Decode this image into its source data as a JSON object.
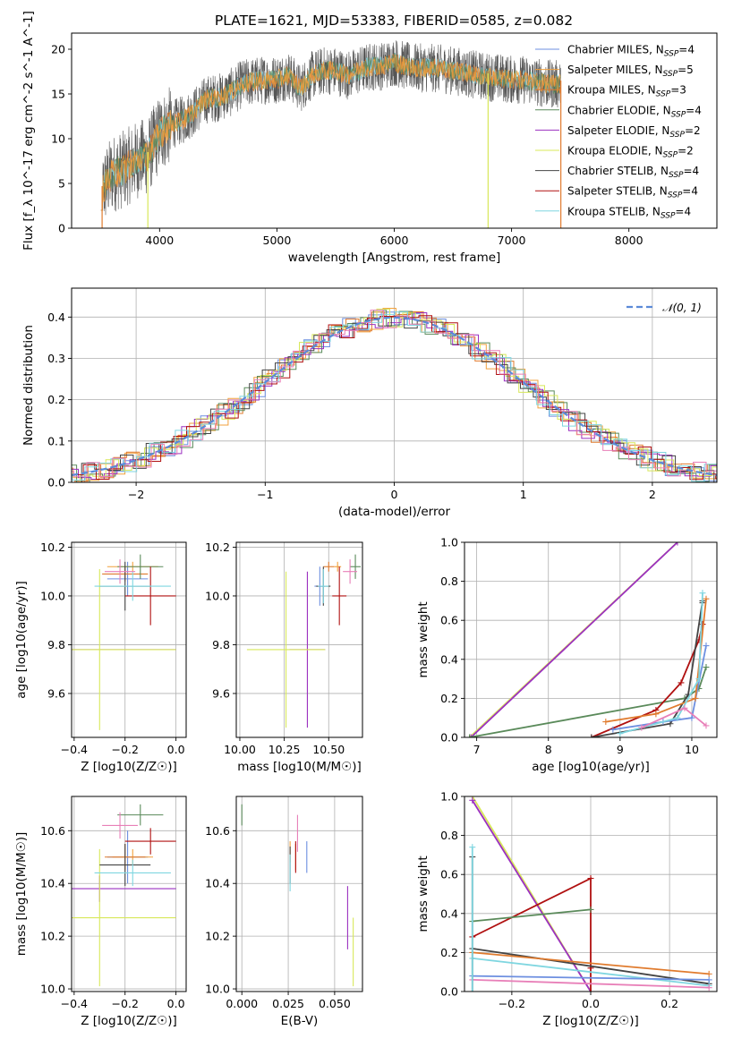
{
  "figure_title": "PLATE=1621, MJD=53383, FIBERID=0585, z=0.082",
  "colors": {
    "Chabrier MILES": "#6d8fe0",
    "Salpeter MILES": "#f2a03c",
    "Kroupa MILES": "#e07b2e",
    "Chabrier ELODIE": "#5a8a5a",
    "Salpeter ELODIE": "#9b30c0",
    "Kroupa ELODIE": "#d8e85a",
    "Chabrier STELIB": "#444444",
    "Salpeter STELIB": "#b01010",
    "Kroupa STELIB": "#7fd6e0",
    "Pink": "#e87fb8",
    "normal": "#5b8ad8"
  },
  "chart_data": [
    {
      "type": "line",
      "title": "PLATE=1621, MJD=53383, FIBERID=0585, z=0.082",
      "xlabel": "wavelength [Angstrom, rest frame]",
      "ylabel": "Flux [f_λ 10^-17 erg cm^-2 s^-1 A^-1]",
      "xlim": [
        3250,
        8750
      ],
      "ylim": [
        0,
        21.8
      ],
      "xticks": [
        "4000",
        "5000",
        "6000",
        "7000",
        "8000"
      ],
      "yticks": [
        "0",
        "5",
        "10",
        "15",
        "20"
      ],
      "legend_placement": "upper right",
      "series": [
        {
          "name": "Chabrier MILES",
          "sub": "SSP",
          "nssp": "=4"
        },
        {
          "name": "Salpeter MILES",
          "sub": "SSP",
          "nssp": "=5"
        },
        {
          "name": "Kroupa MILES",
          "sub": "SSP",
          "nssp": "=3"
        },
        {
          "name": "Chabrier ELODIE",
          "sub": "SSP",
          "nssp": "=4"
        },
        {
          "name": "Salpeter ELODIE",
          "sub": "SSP",
          "nssp": "=2"
        },
        {
          "name": "Kroupa ELODIE",
          "sub": "SSP",
          "nssp": "=2"
        },
        {
          "name": "Chabrier STELIB",
          "sub": "SSP",
          "nssp": "=4"
        },
        {
          "name": "Salpeter STELIB",
          "sub": "SSP",
          "nssp": "=4"
        },
        {
          "name": "Kroupa STELIB",
          "sub": "SSP",
          "nssp": "=4"
        }
      ],
      "envelope": {
        "x": [
          3500,
          3600,
          3700,
          3800,
          3900,
          4000,
          4100,
          4200,
          4300,
          4400,
          4500,
          4600,
          4700,
          4800,
          4900,
          5000,
          5100,
          5200,
          5300,
          5400,
          5500,
          5600,
          5700,
          5800,
          5900,
          6000,
          6100,
          6200,
          6300,
          6400,
          6500,
          6600,
          6700,
          6800,
          6900,
          7000,
          7100,
          7200,
          7300,
          7400
        ],
        "y": [
          5.5,
          7.5,
          8,
          9,
          9.5,
          12,
          13,
          13.5,
          14.5,
          15.8,
          16,
          16.5,
          17.5,
          17.8,
          18,
          18,
          18.5,
          17,
          18.5,
          19,
          19,
          18.5,
          19,
          19.5,
          19.5,
          20,
          19.5,
          19.3,
          19.3,
          19.2,
          19,
          18.8,
          18.5,
          18.3,
          18.2,
          18,
          18,
          17.8,
          17.5,
          17.5
        ]
      }
    },
    {
      "type": "line",
      "xlabel": "(data-model)/error",
      "ylabel": "Normed distribution",
      "xlim": [
        -2.5,
        2.5
      ],
      "ylim": [
        0,
        0.47
      ],
      "xticks": [
        "−2",
        "−1",
        "0",
        "1",
        "2"
      ],
      "yticks": [
        "0.0",
        "0.1",
        "0.2",
        "0.3",
        "0.4"
      ],
      "grid": true,
      "legend": "𝒩(0, 1)",
      "legend_placement": "upper right",
      "histogram_bin_width": 0.1,
      "normal_reference": {
        "mean": 0,
        "sd": 1
      }
    },
    {
      "type": "scatter",
      "xlabel": "Z [log10(Z/Z☉)]",
      "ylabel": "age  [log10(age/yr)]",
      "xlim": [
        -0.41,
        0.04
      ],
      "ylim": [
        9.42,
        10.22
      ],
      "xticks": [
        "−0.4",
        "−0.2",
        "0.0"
      ],
      "yticks": [
        "9.6",
        "9.8",
        "10.0",
        "10.2"
      ],
      "grid": true,
      "points": [
        {
          "series": "Chabrier MILES",
          "x": -0.19,
          "y": 10.07,
          "xerr": 0.08,
          "yerr": 0.07
        },
        {
          "series": "Salpeter MILES",
          "x": -0.17,
          "y": 10.12,
          "xerr": 0.1,
          "yerr": 0.02
        },
        {
          "series": "Kroupa MILES",
          "x": -0.2,
          "y": 10.09,
          "xerr": 0.09,
          "yerr": 0.03
        },
        {
          "series": "Chabrier ELODIE",
          "x": -0.14,
          "y": 10.12,
          "xerr": 0.09,
          "yerr": 0.05
        },
        {
          "series": "Salpeter ELODIE",
          "x": -0.3,
          "y": 9.78,
          "xerr": 0.3,
          "yerr": 0.0
        },
        {
          "series": "Kroupa ELODIE",
          "x": -0.3,
          "y": 9.78,
          "xerr": 0.3,
          "yerr": 0.33
        },
        {
          "series": "Chabrier STELIB",
          "x": -0.2,
          "y": 10.04,
          "xerr": 0.1,
          "yerr": 0.1
        },
        {
          "series": "Salpeter STELIB",
          "x": -0.1,
          "y": 10.0,
          "xerr": 0.1,
          "yerr": 0.12
        },
        {
          "series": "Kroupa STELIB",
          "x": -0.17,
          "y": 10.04,
          "xerr": 0.15,
          "yerr": 0.06
        },
        {
          "series": "Pink",
          "x": -0.22,
          "y": 10.1,
          "xerr": 0.06,
          "yerr": 0.05
        }
      ]
    },
    {
      "type": "scatter",
      "xlabel": "mass [log10(M/M☉)]",
      "ylabel": "",
      "xlim": [
        9.98,
        10.69
      ],
      "ylim": [
        9.42,
        10.22
      ],
      "xticks": [
        "10.00",
        "10.25",
        "10.50"
      ],
      "yticks": [
        "9.6",
        "9.8",
        "10.0",
        "10.2"
      ],
      "grid": true,
      "points": [
        {
          "series": "Chabrier MILES",
          "x": 10.45,
          "y": 10.04,
          "xerr": 0.03,
          "yerr": 0.08
        },
        {
          "series": "Salpeter MILES",
          "x": 10.55,
          "y": 10.12,
          "xerr": 0.02,
          "yerr": 0.02
        },
        {
          "series": "Kroupa MILES",
          "x": 10.5,
          "y": 10.12,
          "xerr": 0.03,
          "yerr": 0.02
        },
        {
          "series": "Chabrier ELODIE",
          "x": 10.65,
          "y": 10.12,
          "xerr": 0.03,
          "yerr": 0.05
        },
        {
          "series": "Salpeter ELODIE",
          "x": 10.38,
          "y": 9.78,
          "xerr": 0.1,
          "yerr": 0.32
        },
        {
          "series": "Kroupa ELODIE",
          "x": 10.26,
          "y": 9.78,
          "xerr": 0.22,
          "yerr": 0.32
        },
        {
          "series": "Chabrier STELIB",
          "x": 10.47,
          "y": 10.04,
          "xerr": 0.04,
          "yerr": 0.08
        },
        {
          "series": "Salpeter STELIB",
          "x": 10.56,
          "y": 10.0,
          "xerr": 0.04,
          "yerr": 0.12
        },
        {
          "series": "Kroupa STELIB",
          "x": 10.47,
          "y": 10.04,
          "xerr": 0.03,
          "yerr": 0.07
        },
        {
          "series": "Pink",
          "x": 10.62,
          "y": 10.1,
          "xerr": 0.04,
          "yerr": 0.05
        }
      ]
    },
    {
      "type": "line",
      "xlabel": "age  [log10(age/yr)]",
      "ylabel": "mass weight",
      "xlim": [
        6.83,
        10.35
      ],
      "ylim": [
        0,
        1.0
      ],
      "xticks": [
        "7",
        "8",
        "9",
        "10"
      ],
      "yticks": [
        "0.0",
        "0.2",
        "0.4",
        "0.6",
        "0.8",
        "1.0"
      ],
      "grid": true,
      "series": [
        {
          "series": "Kroupa ELODIE",
          "x": [
            6.9,
            9.8
          ],
          "y": [
            0.0,
            1.0
          ]
        },
        {
          "series": "Salpeter ELODIE",
          "x": [
            6.92,
            9.8
          ],
          "y": [
            0.0,
            1.0
          ]
        },
        {
          "series": "Chabrier ELODIE",
          "x": [
            6.9,
            9.9,
            10.1,
            10.2
          ],
          "y": [
            0.0,
            0.2,
            0.25,
            0.36
          ]
        },
        {
          "series": "Salpeter STELIB",
          "x": [
            8.6,
            9.5,
            9.85,
            10.1,
            10.15
          ],
          "y": [
            0.0,
            0.14,
            0.28,
            0.5,
            0.58
          ]
        },
        {
          "series": "Chabrier STELIB",
          "x": [
            8.6,
            9.7,
            9.95,
            10.15,
            10.15
          ],
          "y": [
            0.0,
            0.07,
            0.22,
            0.7,
            0.69
          ]
        },
        {
          "series": "Chabrier MILES",
          "x": [
            8.9,
            9.6,
            10.0,
            10.2
          ],
          "y": [
            0.04,
            0.08,
            0.1,
            0.47
          ]
        },
        {
          "series": "Kroupa MILES",
          "x": [
            8.8,
            9.5,
            10.05,
            10.2
          ],
          "y": [
            0.08,
            0.12,
            0.2,
            0.71
          ]
        },
        {
          "series": "Kroupa STELIB",
          "x": [
            9.0,
            9.8,
            10.1,
            10.15
          ],
          "y": [
            0.02,
            0.1,
            0.3,
            0.74
          ]
        },
        {
          "series": "Pink",
          "x": [
            9.3,
            9.9,
            10.2
          ],
          "y": [
            0.05,
            0.15,
            0.06
          ]
        }
      ]
    },
    {
      "type": "scatter",
      "xlabel": "Z [log10(Z/Z☉)]",
      "ylabel": "mass [log10(M/M☉)]",
      "xlim": [
        -0.41,
        0.04
      ],
      "ylim": [
        9.99,
        10.73
      ],
      "xticks": [
        "−0.4",
        "−0.2",
        "0.0"
      ],
      "yticks": [
        "10.0",
        "10.2",
        "10.4",
        "10.6"
      ],
      "grid": true,
      "points": [
        {
          "series": "Chabrier MILES",
          "x": -0.19,
          "y": 10.5,
          "xerr": 0.08,
          "yerr": 0.1
        },
        {
          "series": "Salpeter MILES",
          "x": -0.17,
          "y": 10.5,
          "xerr": 0.08,
          "yerr": 0.03
        },
        {
          "series": "Kroupa MILES",
          "x": -0.2,
          "y": 10.5,
          "xerr": 0.08,
          "yerr": 0.05
        },
        {
          "series": "Chabrier ELODIE",
          "x": -0.14,
          "y": 10.66,
          "xerr": 0.09,
          "yerr": 0.04
        },
        {
          "series": "Salpeter ELODIE",
          "x": -0.3,
          "y": 10.38,
          "xerr": 0.3,
          "yerr": 0.05
        },
        {
          "series": "Kroupa ELODIE",
          "x": -0.3,
          "y": 10.27,
          "xerr": 0.3,
          "yerr": 0.26
        },
        {
          "series": "Chabrier STELIB",
          "x": -0.2,
          "y": 10.47,
          "xerr": 0.1,
          "yerr": 0.08
        },
        {
          "series": "Salpeter STELIB",
          "x": -0.1,
          "y": 10.56,
          "xerr": 0.1,
          "yerr": 0.05
        },
        {
          "series": "Kroupa STELIB",
          "x": -0.17,
          "y": 10.44,
          "xerr": 0.15,
          "yerr": 0.05
        },
        {
          "series": "Pink",
          "x": -0.22,
          "y": 10.62,
          "xerr": 0.07,
          "yerr": 0.05
        }
      ]
    },
    {
      "type": "scatter",
      "xlabel": "E(B-V)",
      "ylabel": "",
      "xlim": [
        -0.003,
        0.065
      ],
      "ylim": [
        9.99,
        10.73
      ],
      "xticks": [
        "0.000",
        "0.025",
        "0.050"
      ],
      "yticks": [
        "10.0",
        "10.2",
        "10.4",
        "10.6"
      ],
      "grid": true,
      "points": [
        {
          "series": "Chabrier MILES",
          "x": 0.035,
          "y": 10.5,
          "xerr": 0,
          "yerr": 0.06
        },
        {
          "series": "Salpeter MILES",
          "x": 0.026,
          "y": 10.52,
          "xerr": 0,
          "yerr": 0.04
        },
        {
          "series": "Kroupa MILES",
          "x": 0.029,
          "y": 10.5,
          "xerr": 0,
          "yerr": 0.05
        },
        {
          "series": "Chabrier ELODIE",
          "x": 0.0,
          "y": 10.66,
          "xerr": 0,
          "yerr": 0.04
        },
        {
          "series": "Salpeter ELODIE",
          "x": 0.057,
          "y": 10.27,
          "xerr": 0,
          "yerr": 0.12
        },
        {
          "series": "Kroupa ELODIE",
          "x": 0.06,
          "y": 10.14,
          "xerr": 0,
          "yerr": 0.13
        },
        {
          "series": "Chabrier STELIB",
          "x": 0.026,
          "y": 10.47,
          "xerr": 0,
          "yerr": 0.07
        },
        {
          "series": "Salpeter STELIB",
          "x": 0.029,
          "y": 10.5,
          "xerr": 0,
          "yerr": 0.06
        },
        {
          "series": "Kroupa STELIB",
          "x": 0.026,
          "y": 10.44,
          "xerr": 0,
          "yerr": 0.07
        },
        {
          "series": "Pink",
          "x": 0.03,
          "y": 10.59,
          "xerr": 0,
          "yerr": 0.07
        }
      ]
    },
    {
      "type": "line",
      "xlabel": "Z [log10(Z/Z☉)]",
      "ylabel": "mass weight",
      "xlim": [
        -0.32,
        0.32
      ],
      "ylim": [
        0,
        1.0
      ],
      "xticks": [
        "−0.2",
        "0.0",
        "0.2"
      ],
      "yticks": [
        "0.0",
        "0.2",
        "0.4",
        "0.6",
        "0.8",
        "1.0"
      ],
      "grid": true,
      "series": [
        {
          "series": "Kroupa ELODIE",
          "x": [
            -0.3,
            0.0
          ],
          "y": [
            1.0,
            0.0
          ]
        },
        {
          "series": "Salpeter ELODIE",
          "x": [
            -0.3,
            0.0
          ],
          "y": [
            0.98,
            0.0
          ]
        },
        {
          "series": "Salpeter STELIB",
          "x": [
            -0.3,
            0.0,
            0.0,
            0.0
          ],
          "y": [
            0.28,
            0.58,
            0.12,
            0.0
          ]
        },
        {
          "series": "Chabrier ELODIE",
          "x": [
            -0.3,
            0.0
          ],
          "y": [
            0.36,
            0.42
          ]
        },
        {
          "series": "Chabrier STELIB",
          "x": [
            -0.3,
            0.3
          ],
          "y": [
            0.22,
            0.04
          ]
        },
        {
          "series": "Kroupa MILES",
          "x": [
            -0.3,
            0.3
          ],
          "y": [
            0.2,
            0.09
          ]
        },
        {
          "series": "Kroupa STELIB",
          "x": [
            -0.3,
            0.3
          ],
          "y": [
            0.17,
            0.03
          ]
        },
        {
          "series": "Chabrier MILES",
          "x": [
            -0.3,
            0.3
          ],
          "y": [
            0.08,
            0.06
          ]
        },
        {
          "series": "Pink",
          "x": [
            -0.3,
            0.3
          ],
          "y": [
            0.06,
            0.02
          ]
        },
        {
          "series": "Chabrier STELIB",
          "x": [
            -0.3,
            -0.3
          ],
          "y": [
            0.0,
            0.69
          ]
        },
        {
          "series": "Kroupa STELIB",
          "x": [
            -0.3,
            -0.3
          ],
          "y": [
            0.0,
            0.74
          ]
        }
      ]
    }
  ]
}
